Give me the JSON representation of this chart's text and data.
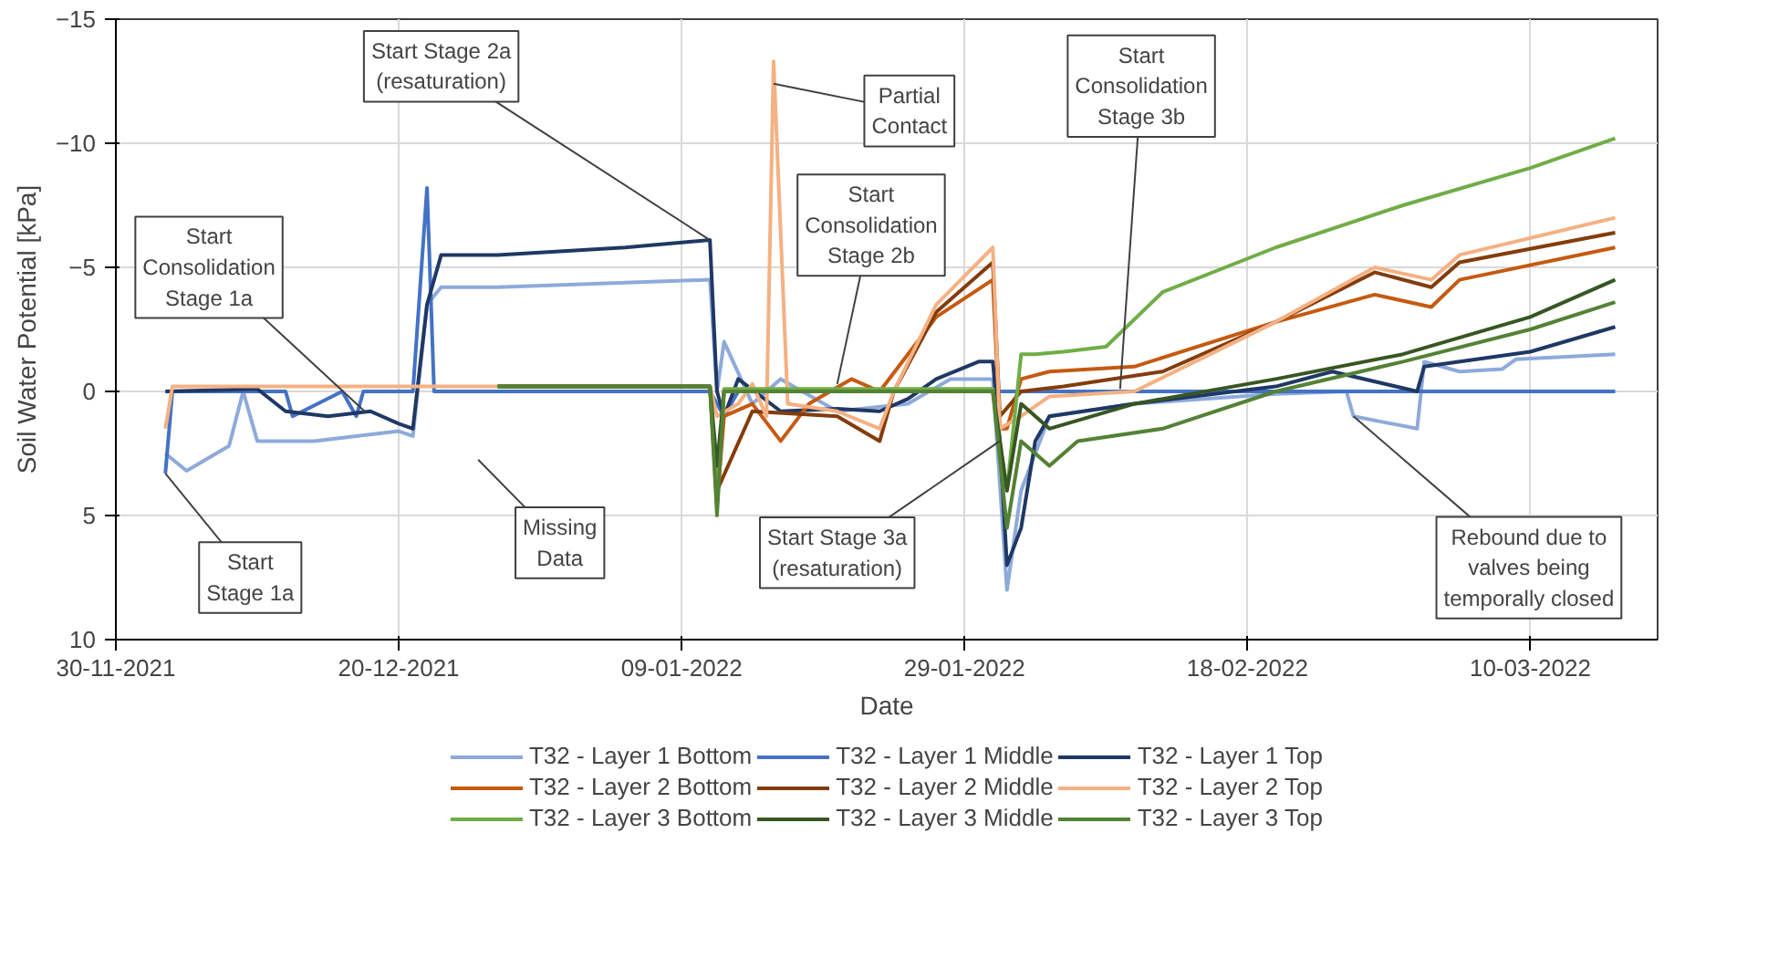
{
  "chart_data": {
    "type": "line",
    "xlabel": "Date",
    "ylabel": "Soil Water Potential [kPa]",
    "xlim": [
      "2021-11-30",
      "2022-03-19"
    ],
    "xticks": [
      {
        "value": "2021-11-30",
        "label": "30-11-2021"
      },
      {
        "value": "2021-12-20",
        "label": "20-12-2021"
      },
      {
        "value": "2022-01-09",
        "label": "09-01-2022"
      },
      {
        "value": "2022-01-29",
        "label": "29-01-2022"
      },
      {
        "value": "2022-02-18",
        "label": "18-02-2022"
      },
      {
        "value": "2022-03-10",
        "label": "10-03-2022"
      }
    ],
    "ylim": [
      10,
      -15
    ],
    "yticks": [
      -15,
      -10,
      -5,
      0,
      5,
      10
    ],
    "grid": true,
    "legend": "bottom",
    "line_style": "solid",
    "marker": "none",
    "series": [
      {
        "name": "T32 - Layer 1 Bottom",
        "color": "#8eaadb",
        "x": [
          "2021-12-03T12:00",
          "2021-12-05",
          "2021-12-08",
          "2021-12-09",
          "2021-12-10",
          "2021-12-14",
          "2021-12-20",
          "2021-12-21",
          "2021-12-22",
          "2021-12-23",
          "2021-12-27",
          "2022-01-11",
          "2022-01-11T12:00",
          "2022-01-12",
          "2022-01-14",
          "2022-01-16",
          "2022-01-20",
          "2022-01-25",
          "2022-01-28",
          "2022-01-31",
          "2022-02-01",
          "2022-02-02",
          "2022-02-04",
          "2022-02-10",
          "2022-02-20",
          "2022-02-25",
          "2022-02-25T12:00",
          "2022-03-02",
          "2022-03-02T12:00",
          "2022-03-05",
          "2022-03-08",
          "2022-03-09",
          "2022-03-16"
        ],
        "values": [
          2.5,
          3.2,
          2.2,
          0,
          2.0,
          2.0,
          1.6,
          1.8,
          -3.5,
          -4.2,
          -4.2,
          -4.5,
          0,
          -2,
          0.5,
          -0.5,
          0.8,
          0.5,
          -0.5,
          -0.5,
          8.0,
          4,
          1,
          0.5,
          0.1,
          0,
          1.0,
          1.5,
          -1.2,
          -0.8,
          -0.9,
          -1.3,
          -1.5
        ]
      },
      {
        "name": "T32 - Layer 1 Middle",
        "color": "#4472c4",
        "x": [
          "2021-12-03T12:00",
          "2021-12-04",
          "2021-12-10",
          "2021-12-12",
          "2021-12-12T12:00",
          "2021-12-16",
          "2021-12-17",
          "2021-12-17T12:00",
          "2021-12-21",
          "2021-12-22",
          "2021-12-22T12:00",
          "2021-12-23",
          "2021-12-27",
          "2022-01-11",
          "2022-01-12",
          "2022-01-13",
          "2022-03-16"
        ],
        "values": [
          3.3,
          0,
          0,
          0,
          1.0,
          0,
          1.0,
          0,
          0,
          -8.2,
          0,
          0,
          0,
          0,
          1,
          0,
          0
        ]
      },
      {
        "name": "T32 - Layer 1 Top",
        "color": "#1f3864",
        "x": [
          "2021-12-03T12:00",
          "2021-12-10",
          "2021-12-12",
          "2021-12-15",
          "2021-12-18",
          "2021-12-20",
          "2021-12-21",
          "2021-12-22",
          "2021-12-23",
          "2021-12-27",
          "2022-01-05",
          "2022-01-11",
          "2022-01-11T12:00",
          "2022-01-12",
          "2022-01-13",
          "2022-01-16",
          "2022-01-20",
          "2022-01-23",
          "2022-01-25",
          "2022-01-27",
          "2022-01-30",
          "2022-01-31",
          "2022-01-31T12:00",
          "2022-02-01",
          "2022-02-02",
          "2022-02-03",
          "2022-02-04",
          "2022-02-10",
          "2022-02-20",
          "2022-02-24",
          "2022-03-02",
          "2022-03-02T12:00",
          "2022-03-10",
          "2022-03-16"
        ],
        "values": [
          0,
          -0.1,
          0.8,
          1.0,
          0.8,
          1.3,
          1.5,
          -3.5,
          -5.5,
          -5.5,
          -5.8,
          -6.1,
          0,
          1.0,
          -0.5,
          0.8,
          0.7,
          0.8,
          0.3,
          -0.5,
          -1.2,
          -1.2,
          2,
          7,
          5.5,
          2,
          1.0,
          0.5,
          -0.2,
          -0.8,
          0,
          -1.0,
          -1.6,
          -2.6
        ]
      },
      {
        "name": "T32 - Layer 2 Bottom",
        "color": "#c55a11",
        "x": [
          "2021-12-27",
          "2022-01-11",
          "2022-01-11T12:00",
          "2022-01-12",
          "2022-01-14",
          "2022-01-16",
          "2022-01-18",
          "2022-01-21",
          "2022-01-23",
          "2022-01-25",
          "2022-01-27",
          "2022-01-31",
          "2022-01-31T12:00",
          "2022-02-01",
          "2022-02-02",
          "2022-02-04",
          "2022-02-10",
          "2022-02-20",
          "2022-02-27",
          "2022-03-03",
          "2022-03-05",
          "2022-03-16"
        ],
        "values": [
          -0.2,
          -0.2,
          4.5,
          1,
          0.5,
          2.0,
          0.5,
          -0.5,
          0,
          -1.5,
          -3.0,
          -4.5,
          1.5,
          1.5,
          -0.5,
          -0.8,
          -1.0,
          -2.8,
          -3.9,
          -3.4,
          -4.5,
          -5.8
        ]
      },
      {
        "name": "T32 - Layer 2 Middle",
        "color": "#843c0c",
        "x": [
          "2021-12-27",
          "2022-01-11",
          "2022-01-11T12:00",
          "2022-01-14",
          "2022-01-20",
          "2022-01-23",
          "2022-01-24",
          "2022-01-27",
          "2022-01-31",
          "2022-01-31T12:00",
          "2022-02-02",
          "2022-02-05",
          "2022-02-12",
          "2022-02-20",
          "2022-02-27",
          "2022-03-03",
          "2022-03-05",
          "2022-03-16"
        ],
        "values": [
          -0.2,
          -0.2,
          4,
          0.8,
          1.0,
          2.0,
          0,
          -3.2,
          -5.2,
          1.0,
          0,
          -0.2,
          -0.8,
          -2.8,
          -4.8,
          -4.2,
          -5.2,
          -6.4
        ]
      },
      {
        "name": "T32 - Layer 2 Top",
        "color": "#f4b183",
        "x": [
          "2021-12-03T12:00",
          "2021-12-04",
          "2021-12-23",
          "2021-12-27",
          "2022-01-11",
          "2022-01-11T12:00",
          "2022-01-13",
          "2022-01-14",
          "2022-01-15",
          "2022-01-15T12:00",
          "2022-01-16T12:00",
          "2022-01-20",
          "2022-01-23",
          "2022-01-24",
          "2022-01-27",
          "2022-01-31",
          "2022-01-31T12:00",
          "2022-02-02",
          "2022-02-04",
          "2022-02-10",
          "2022-02-20",
          "2022-02-27",
          "2022-03-03",
          "2022-03-05",
          "2022-03-16"
        ],
        "values": [
          1.5,
          -0.2,
          -0.2,
          -0.2,
          -0.2,
          1.0,
          0.5,
          -0.3,
          1.0,
          -13.3,
          0.5,
          0.8,
          1.5,
          0,
          -3.5,
          -5.8,
          1.5,
          1.0,
          0.2,
          0,
          -2.8,
          -5.0,
          -4.5,
          -5.5,
          -7.0
        ]
      },
      {
        "name": "T32 - Layer 3 Bottom",
        "color": "#70ad47",
        "x": [
          "2021-12-27",
          "2022-01-11",
          "2022-01-11T12:00",
          "2022-01-12",
          "2022-01-31",
          "2022-01-31T12:00",
          "2022-02-01",
          "2022-02-02",
          "2022-02-03",
          "2022-02-05",
          "2022-02-08",
          "2022-02-12",
          "2022-02-20",
          "2022-03-01",
          "2022-03-10",
          "2022-03-16"
        ],
        "values": [
          -0.2,
          -0.2,
          4.5,
          -0.1,
          -0.1,
          2,
          4,
          -1.5,
          -1.5,
          -1.6,
          -1.8,
          -4.0,
          -5.8,
          -7.5,
          -9.0,
          -10.2
        ]
      },
      {
        "name": "T32 - Layer 3 Middle",
        "color": "#375623",
        "x": [
          "2021-12-27",
          "2022-01-11",
          "2022-01-11T12:00",
          "2022-01-12",
          "2022-01-31",
          "2022-02-01",
          "2022-02-02",
          "2022-02-04",
          "2022-02-10",
          "2022-02-20",
          "2022-03-01",
          "2022-03-10",
          "2022-03-16"
        ],
        "values": [
          -0.2,
          -0.2,
          3,
          0,
          0,
          4,
          0.5,
          1.5,
          0.5,
          -0.5,
          -1.5,
          -3.0,
          -4.5
        ]
      },
      {
        "name": "T32 - Layer 3 Top",
        "color": "#548235",
        "x": [
          "2021-12-27",
          "2022-01-11",
          "2022-01-11T12:00",
          "2022-01-12",
          "2022-01-31",
          "2022-02-01",
          "2022-02-02",
          "2022-02-04",
          "2022-02-06",
          "2022-02-12",
          "2022-02-20",
          "2022-03-01",
          "2022-03-10",
          "2022-03-16"
        ],
        "values": [
          -0.2,
          -0.2,
          5,
          0,
          0,
          5.5,
          2.0,
          3.0,
          2.0,
          1.5,
          0,
          -1.2,
          -2.5,
          -3.6
        ]
      }
    ],
    "annotations": [
      {
        "text": "Start\nStage 1a",
        "x": "2021-12-03T12:00",
        "y": 3.3
      },
      {
        "text": "Start\nConsolidation\nStage 1a",
        "x": "2021-12-17T14:00",
        "y": 0.8
      },
      {
        "text": "Start Stage 2a\n(resaturation)",
        "x": "2022-01-11",
        "y": -6.1
      },
      "Missing\nData",
      {
        "text": "Partial\nContact",
        "x": "2022-01-15T12:00",
        "y": -12.4
      },
      {
        "text": "Start\nConsolidation\nStage 2b",
        "x": "2022-01-20",
        "y": -0.3
      },
      {
        "text": "Start Stage 3a\n(resaturation)",
        "x": "2022-01-31T12:00",
        "y": 2
      },
      {
        "text": "Start\nConsolidation\nStage 3b",
        "x": "2022-02-09",
        "y": -0.1
      },
      {
        "text": "Rebound due to\nvalves being\ntemporally closed",
        "x": "2022-02-25T12:00",
        "y": 1.0
      }
    ]
  }
}
